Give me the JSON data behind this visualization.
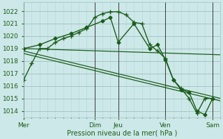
{
  "background_color": "#cde8e8",
  "grid_color_major": "#a0c0c0",
  "grid_color_minor": "#b8d4d4",
  "line_color": "#1a5c1a",
  "xlabel": "Pression niveau de la mer( hPa )",
  "ylim": [
    1013.5,
    1022.7
  ],
  "yticks": [
    1014,
    1015,
    1016,
    1017,
    1018,
    1019,
    1020,
    1021,
    1022
  ],
  "day_labels": [
    "Mer",
    "Dim",
    "Jeu",
    "Ven",
    "Sam"
  ],
  "day_x": [
    0,
    9,
    12,
    18,
    24
  ],
  "xlim": [
    0,
    25
  ],
  "line1_x": [
    0,
    1,
    2,
    3,
    4,
    5,
    6,
    7,
    8,
    9,
    10,
    11,
    12,
    13,
    14,
    15,
    16,
    17,
    18,
    19,
    20,
    21,
    22,
    23,
    24
  ],
  "line1_y": [
    1016.5,
    1017.8,
    1019.0,
    1019.0,
    1019.5,
    1019.8,
    1020.0,
    1020.3,
    1020.6,
    1021.5,
    1021.8,
    1021.95,
    1021.95,
    1021.7,
    1021.1,
    1021.0,
    1019.3,
    1018.8,
    1018.2,
    1016.5,
    1015.8,
    1015.0,
    1013.8,
    1015.0,
    1015.0
  ],
  "line2_x": [
    0,
    2,
    4,
    6,
    8,
    10,
    11,
    12,
    14,
    16,
    17,
    18,
    19,
    20,
    21,
    22,
    23,
    24
  ],
  "line2_y": [
    1019.0,
    1019.3,
    1019.8,
    1020.2,
    1020.7,
    1021.2,
    1021.5,
    1019.5,
    1021.0,
    1019.0,
    1019.3,
    1018.1,
    1016.5,
    1015.7,
    1015.5,
    1014.0,
    1013.7,
    1015.0
  ],
  "line3_x": [
    0,
    25
  ],
  "line3_y": [
    1019.0,
    1018.5
  ],
  "line4_x": [
    0,
    25
  ],
  "line4_y": [
    1018.8,
    1015.0
  ],
  "line5_x": [
    0,
    25
  ],
  "line5_y": [
    1018.6,
    1014.8
  ]
}
